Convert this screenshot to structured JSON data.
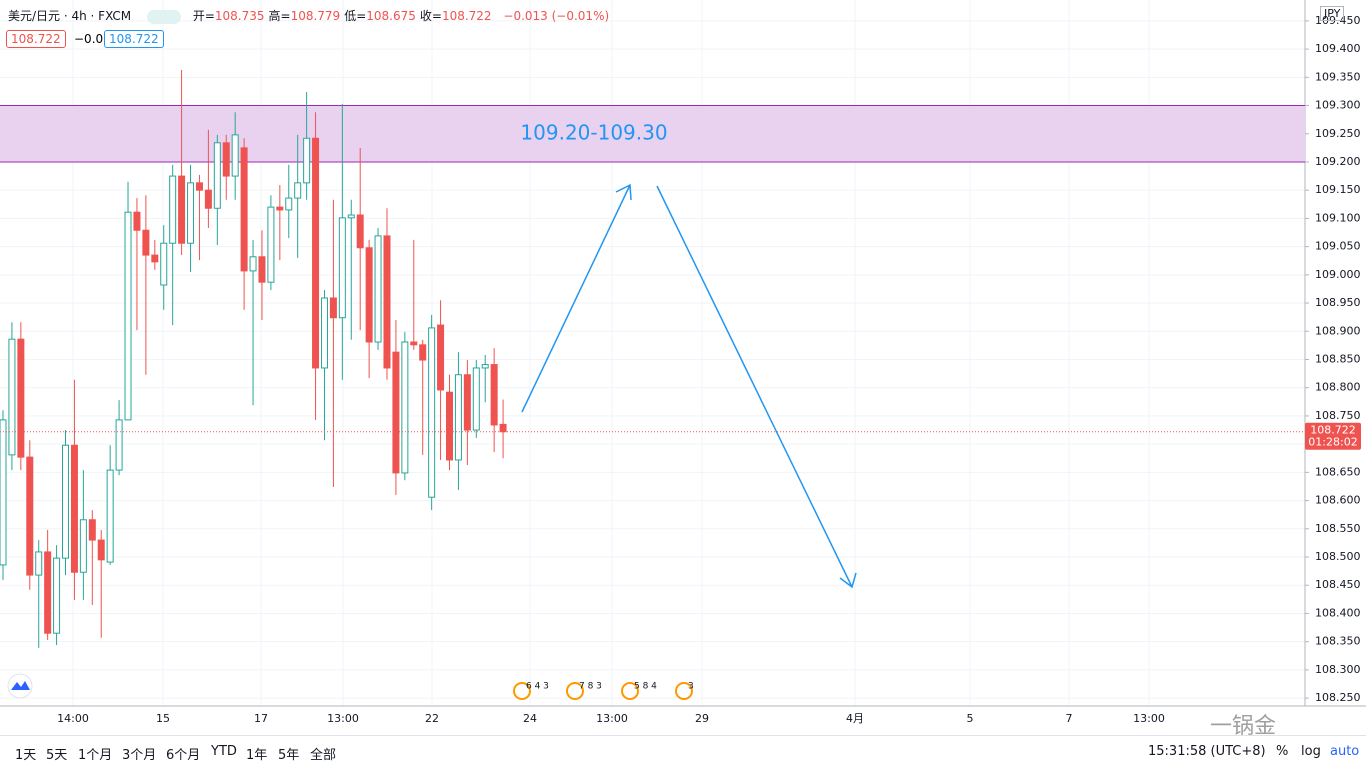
{
  "chart_data": {
    "type": "candlestick",
    "title": "美元/日元 · 4h · FXCM",
    "ohlc_legend": [
      {
        "label": "开=",
        "value": 108.735
      },
      {
        "label": "高=",
        "value": 108.779
      },
      {
        "label": "低=",
        "value": 108.675
      },
      {
        "label": "收=",
        "value": 108.722
      }
    ],
    "change": "−0.013 (−0.01%)",
    "badges": [
      "108.722",
      "−0.0",
      "108.722"
    ],
    "currency": "JPY",
    "open": [
      108.486,
      108.681,
      108.886,
      108.677,
      108.468,
      108.509,
      108.365,
      108.498,
      108.698,
      108.473,
      108.566,
      108.53,
      108.491,
      108.654,
      108.743,
      109.111,
      109.079,
      109.035,
      108.982,
      109.056,
      109.175,
      109.056,
      109.163,
      109.15,
      109.118,
      109.234,
      109.175,
      109.225,
      109.007,
      109.032,
      108.987,
      109.12,
      109.115,
      109.136,
      109.163,
      109.242,
      108.835,
      108.959,
      108.924,
      109.101,
      109.106,
      109.048,
      108.881,
      109.069,
      108.863,
      108.649,
      108.881,
      108.876,
      108.606,
      108.911,
      108.792,
      108.672,
      108.823,
      108.725,
      108.835,
      108.841,
      108.735
    ],
    "high": [
      108.76,
      108.916,
      108.916,
      108.707,
      108.53,
      108.548,
      108.521,
      108.725,
      108.814,
      108.654,
      108.583,
      108.548,
      108.698,
      108.778,
      109.165,
      109.136,
      109.141,
      109.062,
      109.088,
      109.195,
      109.363,
      109.195,
      109.177,
      109.257,
      109.248,
      109.248,
      109.288,
      109.242,
      109.062,
      109.079,
      109.141,
      109.159,
      109.195,
      109.248,
      109.324,
      109.288,
      108.973,
      109.133,
      109.303,
      109.133,
      109.225,
      109.062,
      109.083,
      109.118,
      108.92,
      108.899,
      109.062,
      108.885,
      108.929,
      108.955,
      108.823,
      108.863,
      108.849,
      108.849,
      108.858,
      108.87,
      108.779
    ],
    "low": [
      108.459,
      108.654,
      108.654,
      108.442,
      108.339,
      108.353,
      108.344,
      108.468,
      108.424,
      108.424,
      108.415,
      108.357,
      108.486,
      108.645,
      108.743,
      108.902,
      108.823,
      109.009,
      108.938,
      108.911,
      109.035,
      109.005,
      109.026,
      109.083,
      109.053,
      109.133,
      109.133,
      108.938,
      108.769,
      108.92,
      108.973,
      109.026,
      109.065,
      109.03,
      109.133,
      108.743,
      108.707,
      108.624,
      108.814,
      108.885,
      108.902,
      108.817,
      108.867,
      108.814,
      108.61,
      108.636,
      108.867,
      108.681,
      108.583,
      108.672,
      108.654,
      108.619,
      108.663,
      108.711,
      108.774,
      108.686,
      108.675
    ],
    "close": [
      108.743,
      108.886,
      108.677,
      108.468,
      108.509,
      108.365,
      108.498,
      108.698,
      108.473,
      108.566,
      108.53,
      108.495,
      108.654,
      108.743,
      109.111,
      109.079,
      109.035,
      109.023,
      109.056,
      109.175,
      109.056,
      109.163,
      109.15,
      109.118,
      109.234,
      109.175,
      109.248,
      109.007,
      109.032,
      108.987,
      109.12,
      109.115,
      109.136,
      109.163,
      109.242,
      108.835,
      108.959,
      108.924,
      109.101,
      109.106,
      109.048,
      108.881,
      109.069,
      108.835,
      108.649,
      108.881,
      108.876,
      108.849,
      108.906,
      108.796,
      108.672,
      108.823,
      108.725,
      108.835,
      108.841,
      108.734,
      108.722
    ],
    "up_color": "#26a69a",
    "down_color": "#ef5350",
    "ylim": [
      108.236,
      109.487
    ],
    "yticks": [
      {
        "value": 108.25,
        "label": "108.250"
      },
      {
        "value": 108.3,
        "label": "108.300"
      },
      {
        "value": 108.35,
        "label": "108.350"
      },
      {
        "value": 108.4,
        "label": "108.400"
      },
      {
        "value": 108.45,
        "label": "108.450"
      },
      {
        "value": 108.5,
        "label": "108.500"
      },
      {
        "value": 108.55,
        "label": "108.550"
      },
      {
        "value": 108.6,
        "label": "108.600"
      },
      {
        "value": 108.65,
        "label": "108.650"
      },
      {
        "value": 108.7,
        "label": "108.700"
      },
      {
        "value": 108.75,
        "label": "108.750"
      },
      {
        "value": 108.8,
        "label": "108.800"
      },
      {
        "value": 108.85,
        "label": "108.850"
      },
      {
        "value": 108.9,
        "label": "108.900"
      },
      {
        "value": 108.95,
        "label": "108.950"
      },
      {
        "value": 109.0,
        "label": "109.000"
      },
      {
        "value": 109.05,
        "label": "109.050"
      },
      {
        "value": 109.1,
        "label": "109.100"
      },
      {
        "value": 109.15,
        "label": "109.150"
      },
      {
        "value": 109.2,
        "label": "109.200"
      },
      {
        "value": 109.25,
        "label": "109.250"
      },
      {
        "value": 109.3,
        "label": "109.300"
      },
      {
        "value": 109.35,
        "label": "109.350"
      },
      {
        "value": 109.4,
        "label": "109.400"
      },
      {
        "value": 109.45,
        "label": "109.450"
      }
    ],
    "xlabels": [
      "14:00",
      "15",
      "17",
      "13:00",
      "22",
      "24",
      "13:00",
      "29",
      "4月",
      "5",
      "7",
      "13:00"
    ],
    "grid": true,
    "zone": {
      "low": 109.2,
      "high": 109.3,
      "label": "109.20-109.30"
    },
    "price_label": {
      "value": 108.722,
      "countdown": "01:28:02"
    },
    "events": [
      "6 4 3",
      "7 8 3",
      "5 8 4",
      "3"
    ]
  },
  "toolbar": {
    "ranges": [
      "1天",
      "5天",
      "1个月",
      "3个月",
      "6个月",
      "YTD",
      "1年",
      "5年",
      "全部"
    ],
    "clock": "15:31:58 (UTC+8)",
    "options": [
      "%",
      "log",
      "auto"
    ]
  },
  "watermark": "一锅金"
}
